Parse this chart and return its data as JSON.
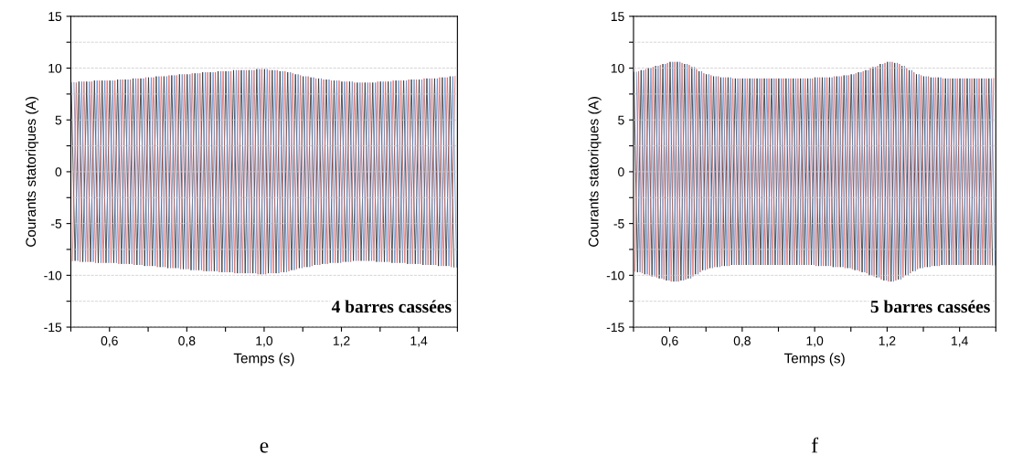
{
  "chart_data": [
    {
      "type": "line",
      "xlabel": "Temps (s)",
      "ylabel": "Courants statoriques (A)",
      "xlim": [
        0.5,
        1.5
      ],
      "ylim": [
        -15,
        15
      ],
      "xticks": [
        {
          "value": 0.5,
          "label": null
        },
        {
          "value": 0.6,
          "label": "0,6"
        },
        {
          "value": 0.7,
          "label": null
        },
        {
          "value": 0.8,
          "label": "0,8"
        },
        {
          "value": 0.9,
          "label": null
        },
        {
          "value": 1.0,
          "label": "1,0"
        },
        {
          "value": 1.1,
          "label": null
        },
        {
          "value": 1.2,
          "label": "1,2"
        },
        {
          "value": 1.3,
          "label": null
        },
        {
          "value": 1.4,
          "label": "1,4"
        },
        {
          "value": 1.5,
          "label": null
        }
      ],
      "yticks": [
        -15,
        {
          "value": -12.5,
          "label": null
        },
        -10,
        {
          "value": -7.5,
          "label": null
        },
        -5,
        {
          "value": -2.5,
          "label": null
        },
        0,
        {
          "value": 2.5,
          "label": null
        },
        5,
        {
          "value": 7.5,
          "label": null
        },
        10,
        {
          "value": 12.5,
          "label": null
        },
        15
      ],
      "grid": "y",
      "marker": "none",
      "line_style": "solid",
      "annotations": [
        "4 barres cassées",
        "e"
      ],
      "series": [
        {
          "color": "#333333",
          "x": [
            0.501,
            0.511,
            0.521,
            0.531,
            0.541,
            0.551,
            0.561,
            0.571,
            0.581,
            0.591,
            0.601,
            0.611,
            0.621,
            0.631,
            0.641,
            0.651,
            0.661,
            0.671,
            0.681,
            0.691,
            0.701,
            0.711,
            0.721,
            0.731,
            0.741,
            0.751,
            0.761,
            0.771,
            0.781,
            0.791,
            0.801,
            0.811,
            0.821,
            0.831,
            0.841,
            0.851,
            0.861,
            0.871,
            0.881,
            0.891,
            0.901,
            0.911,
            0.921,
            0.931,
            0.941,
            0.951,
            0.961,
            0.971,
            0.981,
            0.991,
            1.001,
            1.011,
            1.021,
            1.031,
            1.041,
            1.051,
            1.061,
            1.071,
            1.081,
            1.091,
            1.101,
            1.111,
            1.121,
            1.131,
            1.141,
            1.151,
            1.161,
            1.171,
            1.181,
            1.191,
            1.201,
            1.211,
            1.221,
            1.231,
            1.241,
            1.251,
            1.261,
            1.271,
            1.281,
            1.291,
            1.301,
            1.311,
            1.321,
            1.331,
            1.341,
            1.351,
            1.361,
            1.371,
            1.381,
            1.391,
            1.401,
            1.411,
            1.421,
            1.431,
            1.441,
            1.451,
            1.461,
            1.471,
            1.481,
            1.491
          ],
          "values": [
            8.6,
            -8.6,
            8.7,
            -8.7,
            8.7,
            -8.7,
            8.8,
            -8.8,
            8.8,
            -8.8,
            8.8,
            -8.8,
            8.9,
            -8.9,
            8.9,
            -8.9,
            9.0,
            -9.0,
            9.0,
            -9.1,
            9.1,
            -9.1,
            9.2,
            -9.2,
            9.2,
            -9.3,
            9.3,
            -9.3,
            9.4,
            -9.4,
            9.4,
            -9.5,
            9.5,
            -9.5,
            9.6,
            -9.6,
            9.6,
            -9.6,
            9.7,
            -9.7,
            9.7,
            -9.7,
            9.8,
            -9.8,
            9.8,
            -9.8,
            9.8,
            -9.8,
            9.9,
            -9.9,
            9.9,
            -9.8,
            9.8,
            -9.8,
            9.7,
            -9.7,
            9.6,
            -9.5,
            9.4,
            -9.3,
            9.2,
            -9.2,
            9.1,
            -9.0,
            9.0,
            -8.9,
            8.9,
            -8.8,
            8.8,
            -8.8,
            8.7,
            -8.7,
            8.7,
            -8.6,
            8.6,
            -8.6,
            8.6,
            -8.6,
            8.6,
            -8.7,
            8.7,
            -8.7,
            8.7,
            -8.8,
            8.8,
            -8.8,
            8.8,
            -8.9,
            8.9,
            -8.9,
            8.9,
            -9.0,
            9.0,
            -9.0,
            9.0,
            -9.1,
            9.1,
            -9.1,
            9.2,
            -9.2
          ]
        },
        {
          "color": "#e06666",
          "x": [
            0.504,
            0.514,
            0.524,
            0.534,
            0.544,
            0.554,
            0.564,
            0.574,
            0.584,
            0.594,
            0.604,
            0.614,
            0.624,
            0.634,
            0.644,
            0.654,
            0.664,
            0.674,
            0.684,
            0.694,
            0.704,
            0.714,
            0.724,
            0.734,
            0.744,
            0.754,
            0.764,
            0.774,
            0.784,
            0.794,
            0.804,
            0.814,
            0.824,
            0.834,
            0.844,
            0.854,
            0.864,
            0.874,
            0.884,
            0.894,
            0.904,
            0.914,
            0.924,
            0.934,
            0.944,
            0.954,
            0.964,
            0.974,
            0.984,
            0.994,
            1.004,
            1.014,
            1.024,
            1.034,
            1.044,
            1.054,
            1.064,
            1.074,
            1.084,
            1.094,
            1.104,
            1.114,
            1.124,
            1.134,
            1.144,
            1.154,
            1.164,
            1.174,
            1.184,
            1.194,
            1.204,
            1.214,
            1.224,
            1.234,
            1.244,
            1.254,
            1.264,
            1.274,
            1.284,
            1.294,
            1.304,
            1.314,
            1.324,
            1.334,
            1.344,
            1.354,
            1.364,
            1.374,
            1.384,
            1.394,
            1.404,
            1.414,
            1.424,
            1.434,
            1.444,
            1.454,
            1.464,
            1.474,
            1.484,
            1.494
          ],
          "values": [
            -8.6,
            8.6,
            -8.7,
            8.7,
            -8.7,
            8.7,
            -8.8,
            8.8,
            -8.8,
            8.8,
            -8.8,
            8.8,
            -8.9,
            8.9,
            -8.9,
            8.9,
            -9.0,
            9.0,
            -9.0,
            9.1,
            -9.1,
            9.1,
            -9.2,
            9.2,
            -9.2,
            9.3,
            -9.3,
            9.3,
            -9.4,
            9.4,
            -9.4,
            9.5,
            -9.5,
            9.5,
            -9.6,
            9.6,
            -9.6,
            9.6,
            -9.7,
            9.7,
            -9.7,
            9.7,
            -9.8,
            9.8,
            -9.8,
            9.8,
            -9.8,
            9.8,
            -9.9,
            9.9,
            -9.9,
            9.8,
            -9.8,
            9.8,
            -9.7,
            9.7,
            -9.6,
            9.5,
            -9.4,
            9.3,
            -9.2,
            9.2,
            -9.1,
            9.0,
            -9.0,
            8.9,
            -8.9,
            8.8,
            -8.8,
            8.8,
            -8.7,
            8.7,
            -8.7,
            8.6,
            -8.6,
            8.6,
            -8.6,
            8.6,
            -8.6,
            8.7,
            -8.7,
            8.7,
            -8.7,
            8.8,
            -8.8,
            8.8,
            -8.8,
            8.9,
            -8.9,
            8.9,
            -8.9,
            9.0,
            -9.0,
            9.0,
            -9.0,
            9.1,
            -9.1,
            9.1,
            -9.2,
            9.2
          ]
        },
        {
          "color": "#5b8fd4",
          "x": [
            0.508,
            0.518,
            0.528,
            0.538,
            0.548,
            0.558,
            0.568,
            0.578,
            0.588,
            0.598,
            0.608,
            0.618,
            0.628,
            0.638,
            0.648,
            0.658,
            0.668,
            0.678,
            0.688,
            0.698,
            0.708,
            0.718,
            0.728,
            0.738,
            0.748,
            0.758,
            0.768,
            0.778,
            0.788,
            0.798,
            0.808,
            0.818,
            0.828,
            0.838,
            0.848,
            0.858,
            0.868,
            0.878,
            0.888,
            0.898,
            0.908,
            0.918,
            0.928,
            0.938,
            0.948,
            0.958,
            0.968,
            0.978,
            0.988,
            0.998,
            1.008,
            1.018,
            1.028,
            1.038,
            1.048,
            1.058,
            1.068,
            1.078,
            1.088,
            1.098,
            1.108,
            1.118,
            1.128,
            1.138,
            1.148,
            1.158,
            1.168,
            1.178,
            1.188,
            1.198,
            1.208,
            1.218,
            1.228,
            1.238,
            1.248,
            1.258,
            1.268,
            1.278,
            1.288,
            1.298,
            1.308,
            1.318,
            1.328,
            1.338,
            1.348,
            1.358,
            1.368,
            1.378,
            1.388,
            1.398,
            1.408,
            1.418,
            1.428,
            1.438,
            1.448,
            1.458,
            1.468,
            1.478,
            1.488,
            1.498
          ],
          "values": [
            8.6,
            -8.6,
            8.7,
            -8.7,
            8.7,
            -8.7,
            8.8,
            -8.8,
            8.8,
            -8.8,
            8.8,
            -8.8,
            8.9,
            -8.9,
            8.9,
            -8.9,
            9.0,
            -9.0,
            9.0,
            -9.1,
            9.1,
            -9.1,
            9.2,
            -9.2,
            9.2,
            -9.3,
            9.3,
            -9.3,
            9.4,
            -9.4,
            9.4,
            -9.5,
            9.5,
            -9.5,
            9.6,
            -9.6,
            9.6,
            -9.6,
            9.7,
            -9.7,
            9.7,
            -9.7,
            9.8,
            -9.8,
            9.8,
            -9.8,
            9.8,
            -9.8,
            9.9,
            -9.9,
            9.9,
            -9.8,
            9.8,
            -9.8,
            9.7,
            -9.7,
            9.6,
            -9.5,
            9.4,
            -9.3,
            9.2,
            -9.2,
            9.1,
            -9.0,
            9.0,
            -8.9,
            8.9,
            -8.8,
            8.8,
            -8.8,
            8.7,
            -8.7,
            8.7,
            -8.6,
            8.6,
            -8.6,
            8.6,
            -8.6,
            8.6,
            -8.7,
            8.7,
            -8.7,
            8.7,
            -8.8,
            8.8,
            -8.8,
            8.8,
            -8.9,
            8.9,
            -8.9,
            8.9,
            -9.0,
            9.0,
            -9.0,
            9.0,
            -9.1,
            9.1,
            -9.1,
            9.2,
            -9.2
          ]
        }
      ]
    },
    {
      "type": "line",
      "xlabel": "Temps (s)",
      "ylabel": "Courants statoriques (A)",
      "xlim": [
        0.5,
        1.5
      ],
      "ylim": [
        -15,
        15
      ],
      "xticks": [
        {
          "value": 0.5,
          "label": null
        },
        {
          "value": 0.6,
          "label": "0,6"
        },
        {
          "value": 0.7,
          "label": null
        },
        {
          "value": 0.8,
          "label": "0,8"
        },
        {
          "value": 0.9,
          "label": null
        },
        {
          "value": 1.0,
          "label": "1,0"
        },
        {
          "value": 1.1,
          "label": null
        },
        {
          "value": 1.2,
          "label": "1,2"
        },
        {
          "value": 1.3,
          "label": null
        },
        {
          "value": 1.4,
          "label": "1,4"
        },
        {
          "value": 1.5,
          "label": null
        }
      ],
      "yticks": [
        -15,
        {
          "value": -12.5,
          "label": null
        },
        -10,
        {
          "value": -7.5,
          "label": null
        },
        -5,
        {
          "value": -2.5,
          "label": null
        },
        0,
        {
          "value": 2.5,
          "label": null
        },
        5,
        {
          "value": 7.5,
          "label": null
        },
        10,
        {
          "value": 12.5,
          "label": null
        },
        15
      ],
      "grid": "y",
      "marker": "none",
      "line_style": "solid",
      "annotations": [
        "5 barres cassées",
        "f"
      ],
      "series": [
        {
          "color": "#333333",
          "x": [
            0.501,
            0.511,
            0.521,
            0.531,
            0.541,
            0.551,
            0.561,
            0.571,
            0.581,
            0.591,
            0.601,
            0.611,
            0.621,
            0.631,
            0.641,
            0.651,
            0.661,
            0.671,
            0.681,
            0.691,
            0.701,
            0.711,
            0.721,
            0.731,
            0.741,
            0.751,
            0.761,
            0.771,
            0.781,
            0.791,
            0.801,
            0.811,
            0.821,
            0.831,
            0.841,
            0.851,
            0.861,
            0.871,
            0.881,
            0.891,
            0.901,
            0.911,
            0.921,
            0.931,
            0.941,
            0.951,
            0.961,
            0.971,
            0.981,
            0.991,
            1.001,
            1.011,
            1.021,
            1.031,
            1.041,
            1.051,
            1.061,
            1.071,
            1.081,
            1.091,
            1.101,
            1.111,
            1.121,
            1.131,
            1.141,
            1.151,
            1.161,
            1.171,
            1.181,
            1.191,
            1.201,
            1.211,
            1.221,
            1.231,
            1.241,
            1.251,
            1.261,
            1.271,
            1.281,
            1.291,
            1.301,
            1.311,
            1.321,
            1.331,
            1.341,
            1.351,
            1.361,
            1.371,
            1.381,
            1.391,
            1.401,
            1.411,
            1.421,
            1.431,
            1.441,
            1.451,
            1.461,
            1.471,
            1.481,
            1.491
          ],
          "values": [
            9.6,
            -9.7,
            9.8,
            -9.9,
            10.0,
            -10.1,
            10.2,
            -10.3,
            10.4,
            -10.5,
            10.6,
            -10.6,
            10.6,
            -10.5,
            10.4,
            -10.3,
            10.1,
            -9.9,
            9.7,
            -9.5,
            9.4,
            -9.3,
            9.2,
            -9.2,
            9.1,
            -9.1,
            9.1,
            -9.0,
            9.0,
            -9.0,
            9.0,
            -9.0,
            9.0,
            -9.0,
            9.0,
            -9.0,
            9.0,
            -9.0,
            9.0,
            -9.0,
            9.0,
            -9.0,
            9.0,
            -9.0,
            9.0,
            -9.0,
            9.0,
            -9.0,
            9.0,
            -9.0,
            9.1,
            -9.1,
            9.1,
            -9.1,
            9.1,
            -9.2,
            9.2,
            -9.2,
            9.3,
            -9.3,
            9.4,
            -9.5,
            9.6,
            -9.7,
            9.8,
            -10.0,
            10.1,
            -10.2,
            10.4,
            -10.5,
            10.6,
            -10.6,
            10.5,
            -10.4,
            10.2,
            -10.0,
            9.8,
            -9.6,
            9.4,
            -9.3,
            9.2,
            -9.2,
            9.1,
            -9.1,
            9.1,
            -9.0,
            9.0,
            -9.0,
            9.0,
            -9.0,
            9.0,
            -9.0,
            9.0,
            -9.0,
            9.0,
            -9.0,
            9.0,
            -9.0,
            9.0,
            -9.0
          ]
        },
        {
          "color": "#e06666",
          "x": [
            0.504,
            0.514,
            0.524,
            0.534,
            0.544,
            0.554,
            0.564,
            0.574,
            0.584,
            0.594,
            0.604,
            0.614,
            0.624,
            0.634,
            0.644,
            0.654,
            0.664,
            0.674,
            0.684,
            0.694,
            0.704,
            0.714,
            0.724,
            0.734,
            0.744,
            0.754,
            0.764,
            0.774,
            0.784,
            0.794,
            0.804,
            0.814,
            0.824,
            0.834,
            0.844,
            0.854,
            0.864,
            0.874,
            0.884,
            0.894,
            0.904,
            0.914,
            0.924,
            0.934,
            0.944,
            0.954,
            0.964,
            0.974,
            0.984,
            0.994,
            1.004,
            1.014,
            1.024,
            1.034,
            1.044,
            1.054,
            1.064,
            1.074,
            1.084,
            1.094,
            1.104,
            1.114,
            1.124,
            1.134,
            1.144,
            1.154,
            1.164,
            1.174,
            1.184,
            1.194,
            1.204,
            1.214,
            1.224,
            1.234,
            1.244,
            1.254,
            1.264,
            1.274,
            1.284,
            1.294,
            1.304,
            1.314,
            1.324,
            1.334,
            1.344,
            1.354,
            1.364,
            1.374,
            1.384,
            1.394,
            1.404,
            1.414,
            1.424,
            1.434,
            1.444,
            1.454,
            1.464,
            1.474,
            1.484,
            1.494
          ],
          "values": [
            -9.6,
            9.7,
            -9.8,
            9.9,
            -10.0,
            10.1,
            -10.2,
            10.3,
            -10.4,
            10.5,
            -10.6,
            10.6,
            -10.6,
            10.5,
            -10.4,
            10.3,
            -10.1,
            9.9,
            -9.7,
            9.5,
            -9.4,
            9.3,
            -9.2,
            9.2,
            -9.1,
            9.1,
            -9.1,
            9.0,
            -9.0,
            9.0,
            -9.0,
            9.0,
            -9.0,
            9.0,
            -9.0,
            9.0,
            -9.0,
            9.0,
            -9.0,
            9.0,
            -9.0,
            9.0,
            -9.0,
            9.0,
            -9.0,
            9.0,
            -9.0,
            9.0,
            -9.0,
            9.0,
            -9.1,
            9.1,
            -9.1,
            9.1,
            -9.1,
            9.2,
            -9.2,
            9.2,
            -9.3,
            9.3,
            -9.4,
            9.5,
            -9.6,
            9.7,
            -9.8,
            10.0,
            -10.1,
            10.2,
            -10.4,
            10.5,
            -10.6,
            10.6,
            -10.5,
            10.4,
            -10.2,
            10.0,
            -9.8,
            9.6,
            -9.4,
            9.3,
            -9.2,
            9.2,
            -9.1,
            9.1,
            -9.1,
            9.0,
            -9.0,
            9.0,
            -9.0,
            9.0,
            -9.0,
            9.0,
            -9.0,
            9.0,
            -9.0,
            9.0,
            -9.0,
            9.0,
            -9.0,
            9.0
          ]
        },
        {
          "color": "#5b8fd4",
          "x": [
            0.508,
            0.518,
            0.528,
            0.538,
            0.548,
            0.558,
            0.568,
            0.578,
            0.588,
            0.598,
            0.608,
            0.618,
            0.628,
            0.638,
            0.648,
            0.658,
            0.668,
            0.678,
            0.688,
            0.698,
            0.708,
            0.718,
            0.728,
            0.738,
            0.748,
            0.758,
            0.768,
            0.778,
            0.788,
            0.798,
            0.808,
            0.818,
            0.828,
            0.838,
            0.848,
            0.858,
            0.868,
            0.878,
            0.888,
            0.898,
            0.908,
            0.918,
            0.928,
            0.938,
            0.948,
            0.958,
            0.968,
            0.978,
            0.988,
            0.998,
            1.008,
            1.018,
            1.028,
            1.038,
            1.048,
            1.058,
            1.068,
            1.078,
            1.088,
            1.098,
            1.108,
            1.118,
            1.128,
            1.138,
            1.148,
            1.158,
            1.168,
            1.178,
            1.188,
            1.198,
            1.208,
            1.218,
            1.228,
            1.238,
            1.248,
            1.258,
            1.268,
            1.278,
            1.288,
            1.298,
            1.308,
            1.318,
            1.328,
            1.338,
            1.348,
            1.358,
            1.368,
            1.378,
            1.388,
            1.398,
            1.408,
            1.418,
            1.428,
            1.438,
            1.448,
            1.458,
            1.468,
            1.478,
            1.488,
            1.498
          ],
          "values": [
            9.6,
            -9.7,
            9.8,
            -9.9,
            10.0,
            -10.1,
            10.2,
            -10.3,
            10.4,
            -10.5,
            10.6,
            -10.6,
            10.6,
            -10.5,
            10.4,
            -10.3,
            10.1,
            -9.9,
            9.7,
            -9.5,
            9.4,
            -9.3,
            9.2,
            -9.2,
            9.1,
            -9.1,
            9.1,
            -9.0,
            9.0,
            -9.0,
            9.0,
            -9.0,
            9.0,
            -9.0,
            9.0,
            -9.0,
            9.0,
            -9.0,
            9.0,
            -9.0,
            9.0,
            -9.0,
            9.0,
            -9.0,
            9.0,
            -9.0,
            9.0,
            -9.0,
            9.0,
            -9.0,
            9.1,
            -9.1,
            9.1,
            -9.1,
            9.1,
            -9.2,
            9.2,
            -9.2,
            9.3,
            -9.3,
            9.4,
            -9.5,
            9.6,
            -9.7,
            9.8,
            -10.0,
            10.1,
            -10.2,
            10.4,
            -10.5,
            10.6,
            -10.6,
            10.5,
            -10.4,
            10.2,
            -10.0,
            9.8,
            -9.6,
            9.4,
            -9.3,
            9.2,
            -9.2,
            9.1,
            -9.1,
            9.1,
            -9.0,
            9.0,
            -9.0,
            9.0,
            -9.0,
            9.0,
            -9.0,
            9.0,
            -9.0,
            9.0,
            -9.0,
            9.0,
            -9.0,
            9.0,
            -9.0
          ]
        }
      ]
    }
  ]
}
